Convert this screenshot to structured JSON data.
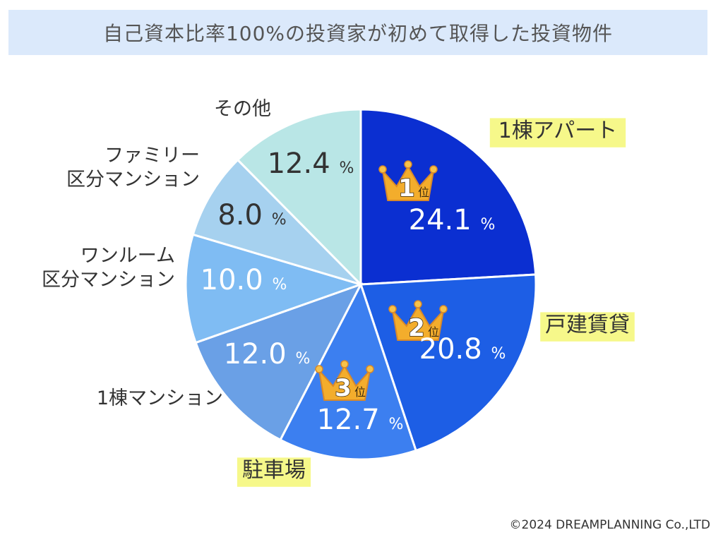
{
  "chart_data": {
    "type": "pie",
    "title": "自己資本比率100%の投資家が初めて取得した投資物件",
    "unit": "%",
    "slices": [
      {
        "label": "1棟アパート",
        "value": 24.1,
        "color": "#0b2fd1",
        "rank": "1",
        "rank_suffix": "位"
      },
      {
        "label": "戸建賃貸",
        "value": 20.8,
        "color": "#1d5ee5",
        "rank": "2",
        "rank_suffix": "位"
      },
      {
        "label": "駐車場",
        "value": 12.7,
        "color": "#3c7ff0",
        "rank": "3",
        "rank_suffix": "位"
      },
      {
        "label": "1棟マンション",
        "value": 12.0,
        "color": "#6aa0e6",
        "rank": null
      },
      {
        "label": "ワンルーム\n区分マンション",
        "value": 10.0,
        "color": "#7fbcf3",
        "rank": null
      },
      {
        "label": "ファミリー\n区分マンション",
        "value": 8.0,
        "color": "#a6d1ef",
        "rank": null
      },
      {
        "label": "その他",
        "value": 12.4,
        "color": "#b9e6e6",
        "rank": null
      }
    ]
  },
  "footer": {
    "copyright": "©2024 DREAMPLANNING Co.,LTD"
  }
}
